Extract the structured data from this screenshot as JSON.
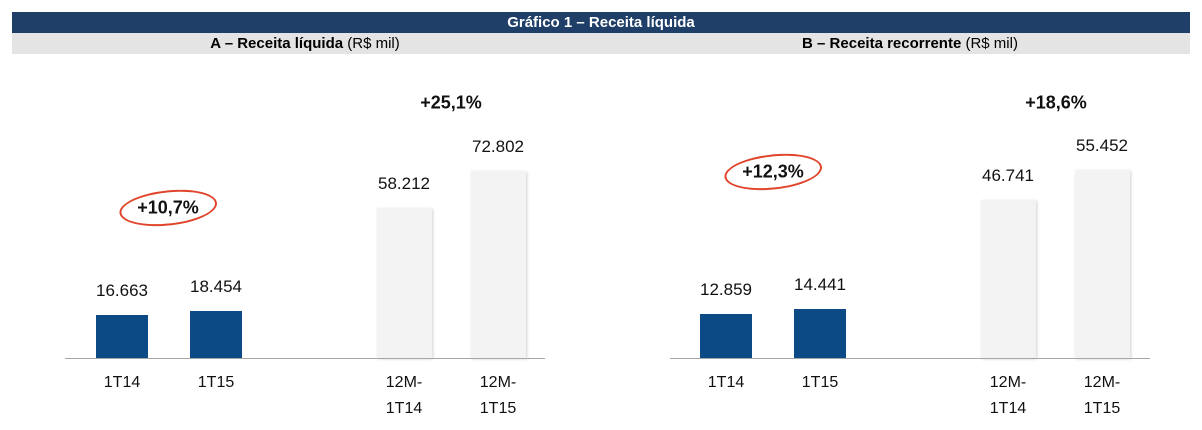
{
  "header": {
    "title": "Gráfico 1 – Receita líquida"
  },
  "chart_data": [
    {
      "type": "bar",
      "title": "A – Receita líquida",
      "unit": "(R$ mil)",
      "categories": [
        "1T14",
        "1T15",
        "12M-1T14",
        "12M-1T15"
      ],
      "values": [
        16663,
        18454,
        58212,
        72802
      ],
      "value_labels": [
        "16.663",
        "18.454",
        "58.212",
        "72.802"
      ],
      "colors": [
        "#0b4a85",
        "#0b4a85",
        "#f3f3f3",
        "#f3f3f3"
      ],
      "annotations": [
        {
          "text": "+10,7%",
          "circled": true
        },
        {
          "text": "+25,1%",
          "circled": false
        }
      ]
    },
    {
      "type": "bar",
      "title": "B – Receita recorrente",
      "unit": "(R$ mil)",
      "categories": [
        "1T14",
        "1T15",
        "12M-1T14",
        "12M-1T15"
      ],
      "values": [
        12859,
        14441,
        46741,
        55452
      ],
      "value_labels": [
        "12.859",
        "14.441",
        "46.741",
        "55.452"
      ],
      "colors": [
        "#0b4a85",
        "#0b4a85",
        "#f3f3f3",
        "#f3f3f3"
      ],
      "annotations": [
        {
          "text": "+12,3%",
          "circled": true
        },
        {
          "text": "+18,6%",
          "circled": false
        }
      ]
    }
  ]
}
